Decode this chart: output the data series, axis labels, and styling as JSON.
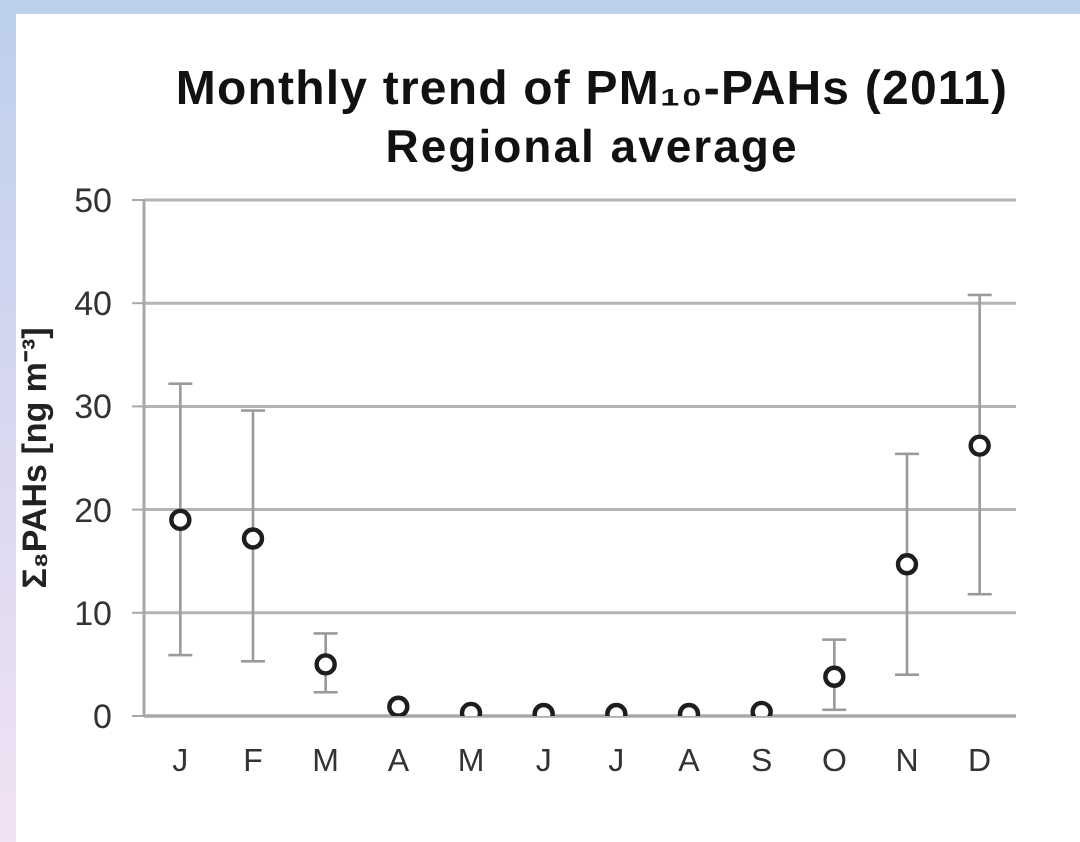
{
  "chart_data": {
    "type": "scatter",
    "title": "Monthly trend of PM₁₀-PAHs (2011)",
    "subtitle": "Regional average",
    "ylabel": "Σ₈PAHs [ng m⁻³]",
    "categories": [
      "J",
      "F",
      "M",
      "A",
      "M",
      "J",
      "J",
      "A",
      "S",
      "O",
      "N",
      "D"
    ],
    "values": [
      19.0,
      17.2,
      5.0,
      0.9,
      0.3,
      0.2,
      0.2,
      0.2,
      0.4,
      3.8,
      14.7,
      26.2
    ],
    "errors": [
      [
        5.9,
        32.2
      ],
      [
        5.3,
        29.6
      ],
      [
        2.3,
        8.0
      ],
      null,
      null,
      null,
      null,
      null,
      null,
      [
        0.6,
        7.4
      ],
      [
        4.0,
        25.4
      ],
      [
        11.8,
        40.8
      ]
    ],
    "color": "#1e1e1e",
    "ylim": [
      0,
      50
    ],
    "yticks": [
      0,
      10,
      20,
      30,
      40,
      50
    ],
    "grid": "y",
    "marker": "circle"
  }
}
